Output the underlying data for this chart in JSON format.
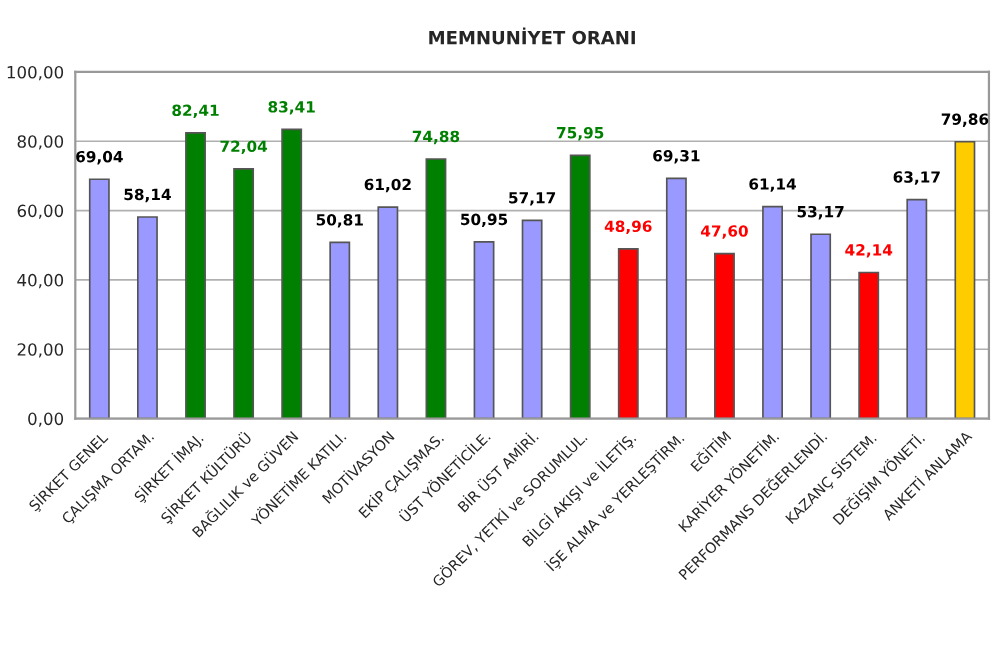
{
  "chart_data": {
    "type": "bar",
    "title": "MEMNUNİYET ORANI",
    "categories": [
      "ŞİRKET GENEL",
      "ÇALIŞMA ORTAM.",
      "ŞİRKET İMAJ.",
      "ŞİRKET KÜLTÜRÜ",
      "BAĞLILIK ve GÜVEN",
      "YÖNETİME KATILI.",
      "MOTİVASYON",
      "EKİP ÇALIŞMAS.",
      "ÜST YÖNETİCİLE.",
      "BİR ÜST AMİRİ.",
      "GÖREV, YETKİ ve SORUMLUL.",
      "BİLGİ AKIŞI ve İLETİŞ.",
      "İŞE ALMA ve YERLEŞTİRM.",
      "EĞİTİM",
      "KARİYER YÖNETİM.",
      "PERFORMANS DEĞERLENDİ.",
      "KAZANÇ SİSTEM.",
      "DEĞİŞİM YÖNETİ.",
      "ANKETİ ANLAMA"
    ],
    "values": [
      69.04,
      58.14,
      82.41,
      72.04,
      83.41,
      50.81,
      61.02,
      74.88,
      50.95,
      57.17,
      75.95,
      48.96,
      69.31,
      47.6,
      61.14,
      53.17,
      42.14,
      63.17,
      79.86
    ],
    "colors": [
      "#9999ff",
      "#9999ff",
      "#008000",
      "#008000",
      "#008000",
      "#9999ff",
      "#9999ff",
      "#008000",
      "#9999ff",
      "#9999ff",
      "#008000",
      "#ff0000",
      "#9999ff",
      "#ff0000",
      "#9999ff",
      "#9999ff",
      "#ff0000",
      "#9999ff",
      "#ffcc00"
    ],
    "value_labels": [
      "69,04",
      "58,14",
      "82,41",
      "72,04",
      "83,41",
      "50,81",
      "61,02",
      "74,88",
      "50,95",
      "57,17",
      "75,95",
      "48,96",
      "69,31",
      "47,60",
      "61,14",
      "53,17",
      "42,14",
      "63,17",
      "79,86"
    ],
    "ylim": [
      0,
      100
    ],
    "yticks": [
      {
        "value": 0,
        "label": "0,00"
      },
      {
        "value": 20,
        "label": "20,00"
      },
      {
        "value": 40,
        "label": "40,00"
      },
      {
        "value": 60,
        "label": "60,00"
      },
      {
        "value": 80,
        "label": "80,00"
      },
      {
        "value": 100,
        "label": "100,00"
      }
    ],
    "grid": "y",
    "legend": false
  }
}
